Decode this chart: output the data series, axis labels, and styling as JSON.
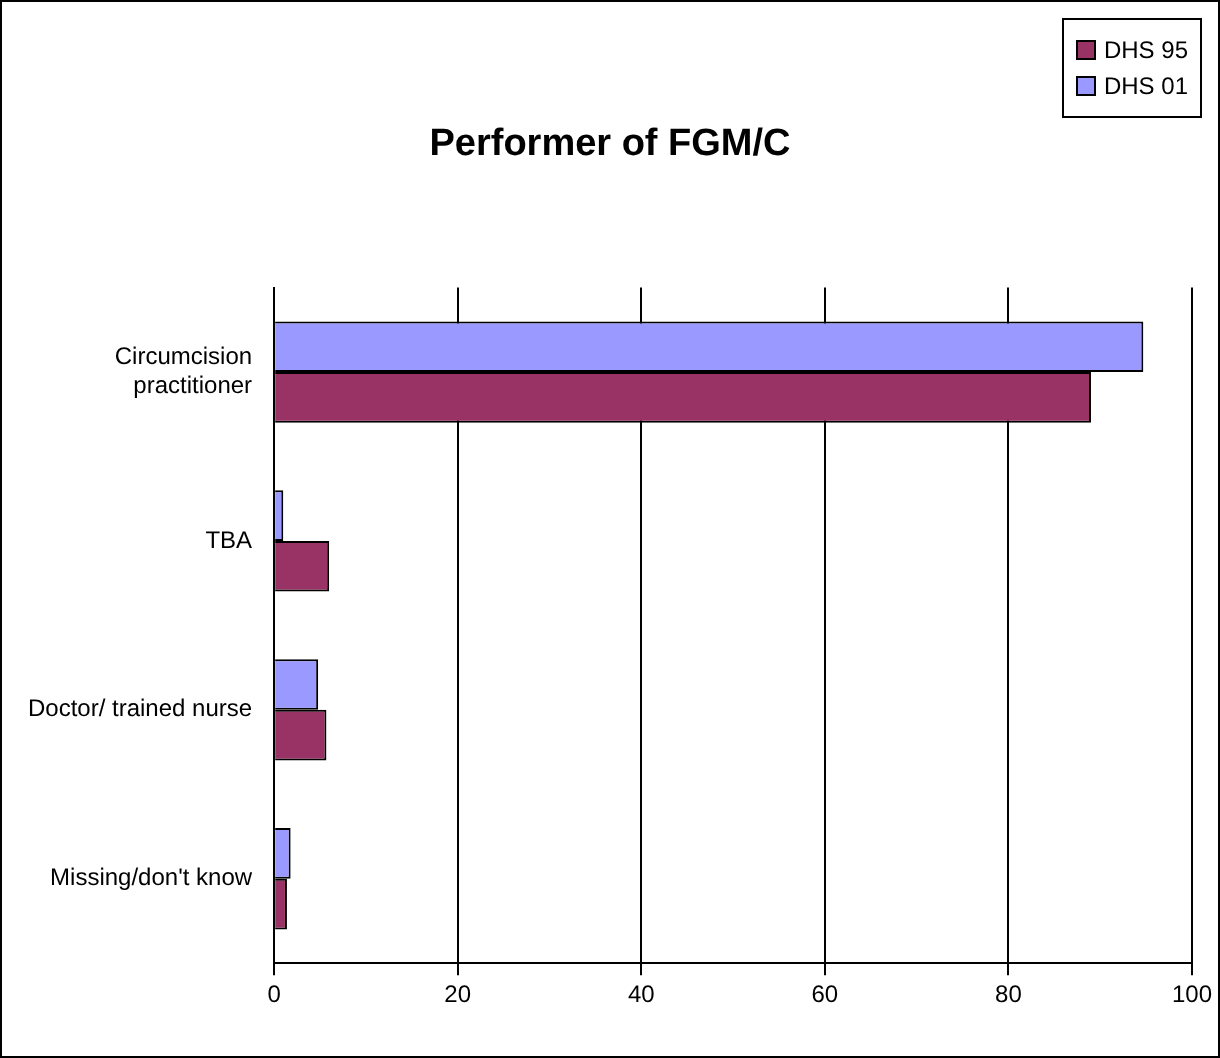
{
  "chart_data": {
    "type": "bar",
    "orientation": "horizontal",
    "title": "Performer of FGM/C",
    "categories": [
      "Circumcision practitioner",
      "TBA",
      "Doctor/ trained nurse",
      "Missing/don't know"
    ],
    "series": [
      {
        "name": "DHS 95",
        "color": "#993366",
        "values": [
          89,
          6,
          5.7,
          1.4
        ]
      },
      {
        "name": "DHS 01",
        "color": "#9999ff",
        "values": [
          94.7,
          1,
          4.8,
          1.8
        ]
      }
    ],
    "xlim": [
      0,
      100
    ],
    "xticks": [
      0,
      20,
      40,
      60,
      80,
      100
    ],
    "grid": "x",
    "legend": "top right"
  }
}
